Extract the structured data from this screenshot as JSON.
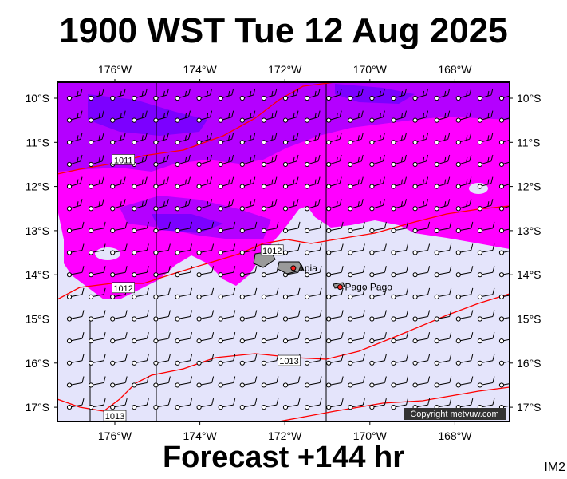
{
  "title": "1900 WST Tue 12 Aug 2025",
  "footer": "Forecast +144 hr",
  "code": "IM2",
  "copyright": "Copyright metvuw.com",
  "lon_labels": [
    "176°W",
    "174°W",
    "172°W",
    "170°W",
    "168°W"
  ],
  "lat_labels": [
    "10°S",
    "11°S",
    "12°S",
    "13°S",
    "14°S",
    "15°S",
    "16°S",
    "17°S"
  ],
  "places": [
    {
      "name": "Apia",
      "lon": -171.8,
      "lat": -13.85
    },
    {
      "name": "Pago Pago",
      "lon": -170.7,
      "lat": -14.28
    }
  ],
  "isobars": [
    {
      "label": "1011",
      "lon": -175.8,
      "lat": -11.4
    },
    {
      "label": "1012",
      "lon": -172.3,
      "lat": -13.45
    },
    {
      "label": "1012",
      "lon": -175.8,
      "lat": -14.3
    },
    {
      "label": "1013",
      "lon": -171.9,
      "lat": -15.95
    },
    {
      "label": "1013",
      "lon": -176.0,
      "lat": -17.2
    }
  ],
  "colors": {
    "light": "#e4e4fb",
    "magenta": "#ff00ff",
    "purple": "#b400ff",
    "violet": "#7c00ff",
    "isobar": "#ff0000"
  }
}
